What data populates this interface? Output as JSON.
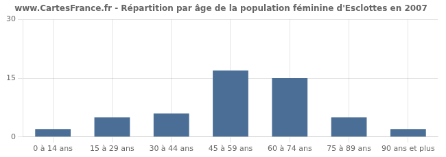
{
  "chart_data": {
    "type": "bar",
    "title": "www.CartesFrance.fr - Répartition par âge de la population féminine d'Esclottes en 2007",
    "categories": [
      "0 à 14 ans",
      "15 à 29 ans",
      "30 à 44 ans",
      "45 à 59 ans",
      "60 à 74 ans",
      "75 à 89 ans",
      "90 ans et plus"
    ],
    "values": [
      2,
      5,
      6,
      17,
      15,
      5,
      2
    ],
    "color": "#4a6e96",
    "ylim": [
      0,
      30
    ],
    "yticks": [
      0,
      15,
      30
    ],
    "grid": true
  }
}
